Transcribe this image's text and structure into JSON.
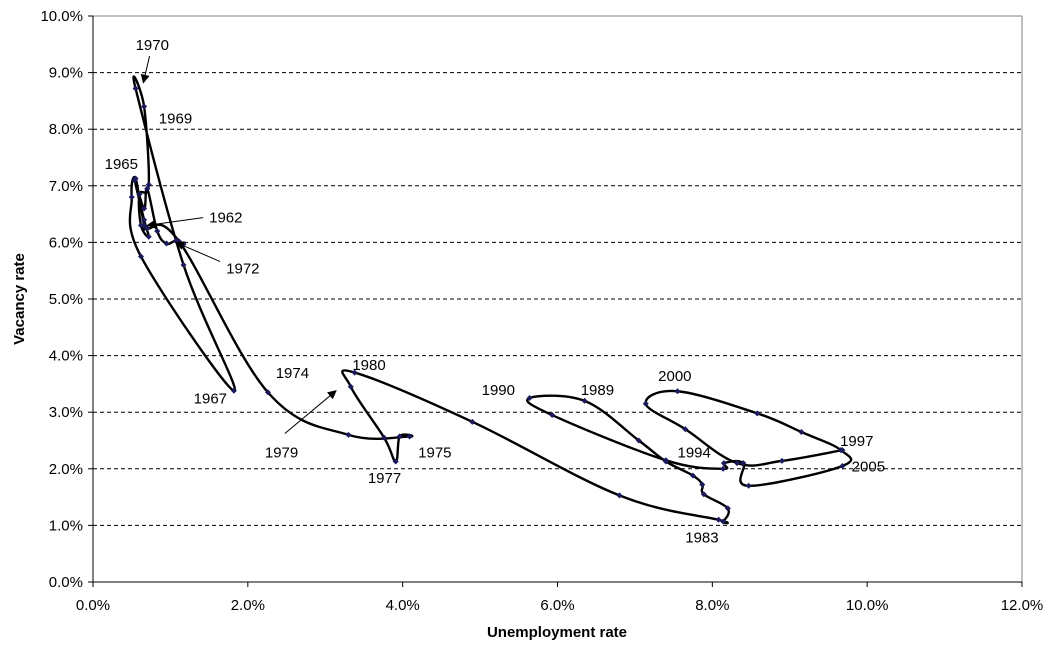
{
  "chart_data": {
    "type": "line",
    "xlabel": "Unemployment rate",
    "ylabel": "Vacancy rate",
    "xlim": [
      0,
      12
    ],
    "ylim": [
      0,
      10
    ],
    "x_ticks": [
      "0.0%",
      "2.0%",
      "4.0%",
      "6.0%",
      "8.0%",
      "10.0%",
      "12.0%"
    ],
    "y_ticks": [
      "0.0%",
      "1.0%",
      "2.0%",
      "3.0%",
      "4.0%",
      "5.0%",
      "6.0%",
      "7.0%",
      "8.0%",
      "9.0%",
      "10.0%"
    ],
    "grid": "horizontal dashed",
    "line_color": "#000000",
    "marker_color": "#1a1a5c",
    "series": [
      {
        "points": [
          [
            1.17,
            5.97
          ],
          [
            1.07,
            6.03
          ],
          [
            0.95,
            5.98
          ],
          [
            0.83,
            6.2
          ],
          [
            0.7,
            6.95
          ],
          [
            0.66,
            6.6
          ],
          [
            0.54,
            7.1
          ],
          [
            0.66,
            6.4
          ],
          [
            0.72,
            6.1
          ],
          [
            0.62,
            6.3
          ],
          [
            0.6,
            6.85
          ],
          [
            0.72,
            7.02
          ],
          [
            0.66,
            8.4
          ],
          [
            0.55,
            8.72
          ],
          [
            1.17,
            5.6
          ],
          [
            1.82,
            3.38
          ],
          [
            0.62,
            5.75
          ],
          [
            0.5,
            6.8
          ],
          [
            0.55,
            7.13
          ],
          [
            0.66,
            6.3
          ],
          [
            0.7,
            6.25
          ],
          [
            1.11,
            6.02
          ],
          [
            2.26,
            3.35
          ],
          [
            3.3,
            2.6
          ],
          [
            4.09,
            2.57
          ],
          [
            3.96,
            2.57
          ],
          [
            3.91,
            2.13
          ],
          [
            3.76,
            2.55
          ],
          [
            3.33,
            3.45
          ],
          [
            3.38,
            3.7
          ],
          [
            4.9,
            2.83
          ],
          [
            6.8,
            1.53
          ],
          [
            8.08,
            1.1
          ],
          [
            8.14,
            1.07
          ],
          [
            8.2,
            1.3
          ],
          [
            7.89,
            1.55
          ],
          [
            7.87,
            1.72
          ],
          [
            7.75,
            1.88
          ],
          [
            7.4,
            2.13
          ],
          [
            7.05,
            2.5
          ],
          [
            6.35,
            3.2
          ],
          [
            5.64,
            3.25
          ],
          [
            5.93,
            2.95
          ],
          [
            7.4,
            2.15
          ],
          [
            8.14,
            2.0
          ],
          [
            8.15,
            2.1
          ],
          [
            8.4,
            2.1
          ],
          [
            8.47,
            1.7
          ],
          [
            9.68,
            2.05
          ],
          [
            9.66,
            2.33
          ],
          [
            9.15,
            2.65
          ],
          [
            8.58,
            2.98
          ],
          [
            7.55,
            3.37
          ],
          [
            7.14,
            3.15
          ],
          [
            7.65,
            2.7
          ],
          [
            8.32,
            2.1
          ],
          [
            8.9,
            2.14
          ],
          [
            9.68,
            2.33
          ]
        ]
      }
    ],
    "annotations": [
      {
        "label": "1970",
        "x": 0.55,
        "y": 9.4,
        "arrow_to": [
          0.65,
          8.82
        ]
      },
      {
        "label": "1969",
        "x": 0.85,
        "y": 8.1
      },
      {
        "label": "1965",
        "x": 0.15,
        "y": 7.3
      },
      {
        "label": "1962",
        "x": 1.5,
        "y": 6.35,
        "arrow_to": [
          0.7,
          6.3
        ]
      },
      {
        "label": "1972",
        "x": 1.72,
        "y": 5.45,
        "arrow_to": [
          1.07,
          6.0
        ]
      },
      {
        "label": "1967",
        "x": 1.3,
        "y": 3.15
      },
      {
        "label": "1974",
        "x": 2.36,
        "y": 3.6
      },
      {
        "label": "1980",
        "x": 3.35,
        "y": 3.75
      },
      {
        "label": "1979",
        "x": 2.22,
        "y": 2.2,
        "arrow_to": [
          3.14,
          3.38
        ]
      },
      {
        "label": "1975",
        "x": 4.2,
        "y": 2.2
      },
      {
        "label": "1977",
        "x": 3.55,
        "y": 1.75
      },
      {
        "label": "1990",
        "x": 5.02,
        "y": 3.3
      },
      {
        "label": "1989",
        "x": 6.3,
        "y": 3.3
      },
      {
        "label": "2000",
        "x": 7.3,
        "y": 3.55
      },
      {
        "label": "1997",
        "x": 9.65,
        "y": 2.4
      },
      {
        "label": "1994",
        "x": 7.55,
        "y": 2.2
      },
      {
        "label": "2005",
        "x": 9.8,
        "y": 1.95
      },
      {
        "label": "1983",
        "x": 7.65,
        "y": 0.7
      }
    ]
  }
}
